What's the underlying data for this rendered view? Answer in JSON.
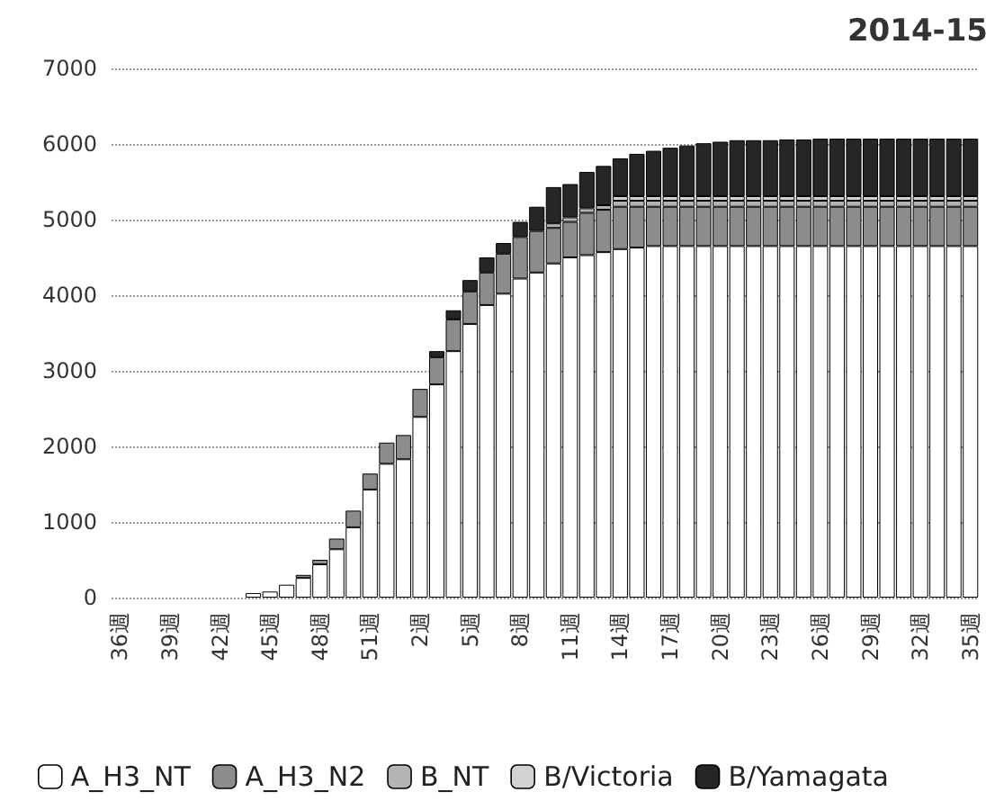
{
  "chart_data": {
    "type": "bar",
    "title": "2014-15",
    "stacked": true,
    "grid": "y",
    "legend": "bottom",
    "categories": [
      "36週",
      null,
      null,
      "39週",
      null,
      null,
      "42週",
      null,
      null,
      "45週",
      null,
      null,
      "48週",
      null,
      null,
      "51週",
      null,
      null,
      "2週",
      null,
      null,
      "5週",
      null,
      null,
      "8週",
      null,
      null,
      "11週",
      null,
      null,
      "14週",
      null,
      null,
      "17週",
      null,
      null,
      "20週",
      null,
      null,
      "23週",
      null,
      null,
      "26週",
      null,
      null,
      "29週",
      null,
      null,
      "32週",
      null,
      null,
      "35週"
    ],
    "ylim": [
      0,
      7000
    ],
    "yticks": [
      0,
      1000,
      2000,
      3000,
      4000,
      5000,
      6000,
      7000
    ],
    "series": [
      {
        "name": "A_H3_NT",
        "color": "#ffffff",
        "values": [
          null,
          null,
          null,
          null,
          null,
          null,
          null,
          null,
          60,
          80,
          170,
          260,
          440,
          640,
          930,
          1430,
          1770,
          1830,
          2390,
          2820,
          3260,
          3620,
          3870,
          4020,
          4220,
          4300,
          4420,
          4500,
          4530,
          4570,
          4610,
          4630,
          4650,
          4650,
          4650,
          4650,
          4650,
          4650,
          4650,
          4650,
          4650,
          4650,
          4650,
          4650,
          4650,
          4650,
          4650,
          4650,
          4650,
          4650,
          4650,
          4650
        ]
      },
      {
        "name": "A_H3_N2",
        "color": "#8c8c8c",
        "values": [
          null,
          null,
          null,
          null,
          null,
          null,
          null,
          null,
          null,
          null,
          null,
          40,
          60,
          140,
          220,
          210,
          280,
          320,
          370,
          360,
          420,
          430,
          430,
          530,
          550,
          550,
          470,
          470,
          560,
          560,
          560,
          540,
          520,
          520,
          520,
          520,
          520,
          520,
          520,
          520,
          520,
          520,
          520,
          520,
          520,
          520,
          520,
          520,
          520,
          520,
          520,
          520
        ]
      },
      {
        "name": "B_NT",
        "color": "#b4b4b4",
        "values": [
          null,
          null,
          null,
          null,
          null,
          null,
          null,
          null,
          null,
          null,
          null,
          null,
          null,
          null,
          null,
          null,
          null,
          null,
          null,
          null,
          null,
          null,
          null,
          null,
          null,
          null,
          60,
          60,
          60,
          60,
          80,
          80,
          80,
          80,
          80,
          80,
          80,
          80,
          80,
          80,
          80,
          80,
          80,
          80,
          80,
          80,
          80,
          80,
          80,
          80,
          80,
          80
        ]
      },
      {
        "name": "B/Victoria",
        "color": "#d2d2d2",
        "values": [
          null,
          null,
          null,
          null,
          null,
          null,
          null,
          null,
          null,
          null,
          null,
          null,
          null,
          null,
          null,
          null,
          null,
          null,
          null,
          null,
          null,
          null,
          null,
          null,
          null,
          null,
          null,
          null,
          null,
          null,
          60,
          60,
          60,
          60,
          60,
          60,
          60,
          60,
          60,
          60,
          60,
          60,
          60,
          60,
          60,
          60,
          60,
          60,
          60,
          60,
          60,
          60
        ]
      },
      {
        "name": "B/Yamagata",
        "color": "#262626",
        "values": [
          null,
          null,
          null,
          null,
          null,
          null,
          null,
          null,
          null,
          null,
          null,
          null,
          null,
          null,
          null,
          null,
          null,
          null,
          null,
          80,
          120,
          150,
          200,
          140,
          200,
          320,
          480,
          440,
          480,
          520,
          500,
          560,
          600,
          640,
          670,
          700,
          720,
          740,
          740,
          740,
          750,
          750,
          760,
          760,
          760,
          760,
          760,
          760,
          760,
          760,
          760,
          760
        ]
      }
    ]
  }
}
